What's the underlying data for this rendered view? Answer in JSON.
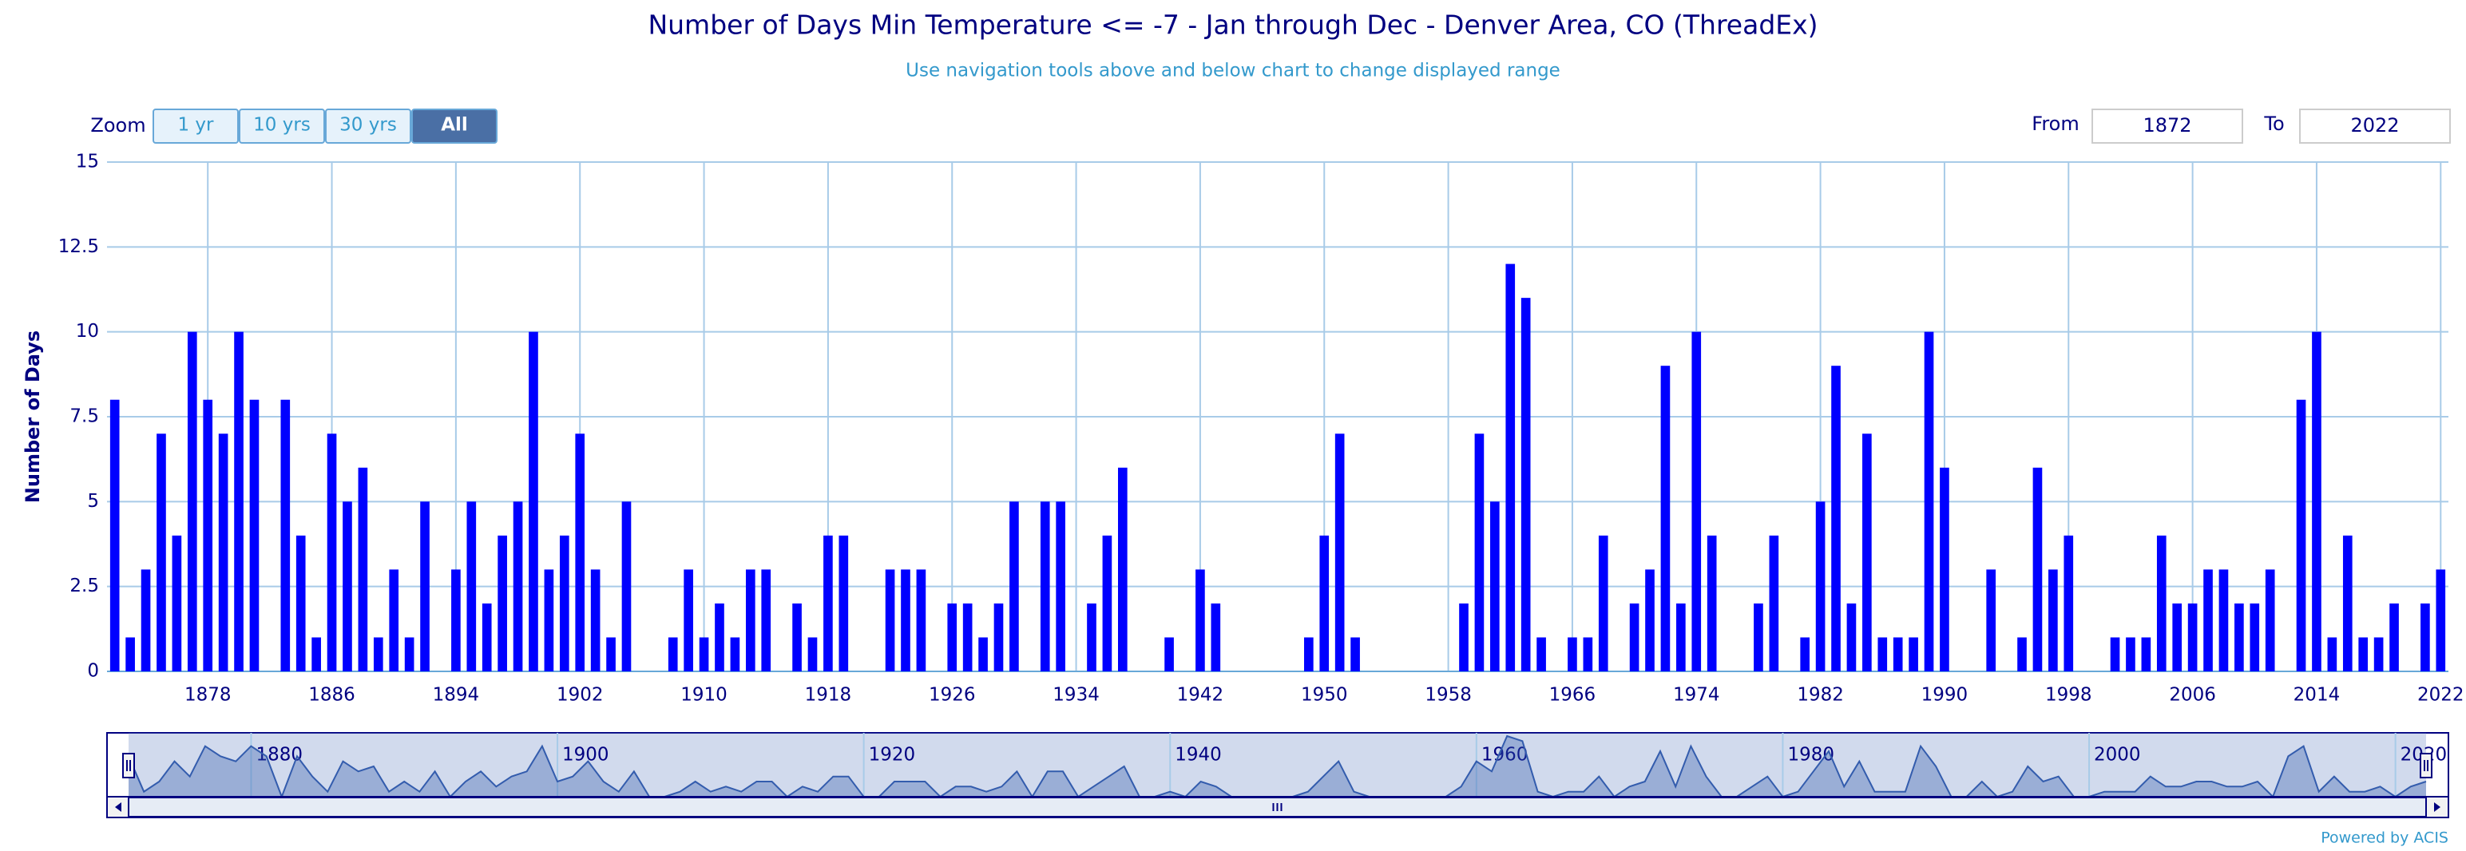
{
  "chart_data": {
    "type": "bar",
    "title": "Number of Days Min Temperature <= -7 - Jan through Dec - Denver Area, CO (ThreadEx)",
    "subtitle": "Use navigation tools above and below chart to change displayed range",
    "y_label": "Number of Days",
    "credit": "Powered by ACIS",
    "zoom": {
      "label": "Zoom",
      "buttons": [
        "1 yr",
        "10 yrs",
        "30 yrs",
        "All"
      ],
      "selected": 3
    },
    "range": {
      "from_label": "From",
      "from": "1872",
      "to_label": "To",
      "to": "2022"
    },
    "color": "#0000ff",
    "x": [
      1872,
      1873,
      1874,
      1875,
      1876,
      1877,
      1878,
      1879,
      1880,
      1881,
      1882,
      1883,
      1884,
      1885,
      1886,
      1887,
      1888,
      1889,
      1890,
      1891,
      1892,
      1893,
      1894,
      1895,
      1896,
      1897,
      1898,
      1899,
      1900,
      1901,
      1902,
      1903,
      1904,
      1905,
      1906,
      1907,
      1908,
      1909,
      1910,
      1911,
      1912,
      1913,
      1914,
      1915,
      1916,
      1917,
      1918,
      1919,
      1920,
      1921,
      1922,
      1923,
      1924,
      1925,
      1926,
      1927,
      1928,
      1929,
      1930,
      1931,
      1932,
      1933,
      1934,
      1935,
      1936,
      1937,
      1938,
      1939,
      1940,
      1941,
      1942,
      1943,
      1944,
      1945,
      1946,
      1947,
      1948,
      1949,
      1950,
      1951,
      1952,
      1953,
      1954,
      1955,
      1956,
      1957,
      1958,
      1959,
      1960,
      1961,
      1962,
      1963,
      1964,
      1965,
      1966,
      1967,
      1968,
      1969,
      1970,
      1971,
      1972,
      1973,
      1974,
      1975,
      1976,
      1977,
      1978,
      1979,
      1980,
      1981,
      1982,
      1983,
      1984,
      1985,
      1986,
      1987,
      1988,
      1989,
      1990,
      1991,
      1992,
      1993,
      1994,
      1995,
      1996,
      1997,
      1998,
      1999,
      2000,
      2001,
      2002,
      2003,
      2004,
      2005,
      2006,
      2007,
      2008,
      2009,
      2010,
      2011,
      2012,
      2013,
      2014,
      2015,
      2016,
      2017,
      2018,
      2019,
      2020,
      2021,
      2022
    ],
    "values": [
      8,
      1,
      3,
      7,
      4,
      10,
      8,
      7,
      10,
      8,
      0,
      8,
      4,
      1,
      7,
      5,
      6,
      1,
      3,
      1,
      5,
      0,
      3,
      5,
      2,
      4,
      5,
      10,
      3,
      4,
      7,
      3,
      1,
      5,
      0,
      0,
      1,
      3,
      1,
      2,
      1,
      3,
      3,
      0,
      2,
      1,
      4,
      4,
      0,
      0,
      3,
      3,
      3,
      0,
      2,
      2,
      1,
      2,
      5,
      0,
      5,
      5,
      0,
      2,
      4,
      6,
      0,
      0,
      1,
      0,
      3,
      2,
      0,
      0,
      0,
      0,
      0,
      1,
      4,
      7,
      1,
      0,
      0,
      0,
      0,
      0,
      0,
      2,
      7,
      5,
      12,
      11,
      1,
      0,
      1,
      1,
      4,
      0,
      2,
      3,
      9,
      2,
      10,
      4,
      0,
      0,
      2,
      4,
      0,
      1,
      5,
      9,
      2,
      7,
      1,
      1,
      1,
      10,
      6,
      0,
      0,
      3,
      0,
      1,
      6,
      3,
      4,
      0,
      0,
      1,
      1,
      1,
      4,
      2,
      2,
      3,
      3,
      2,
      2,
      3,
      0,
      8,
      10,
      1,
      4,
      1,
      1,
      2,
      0,
      2,
      3
    ],
    "xlim": [
      1871.5,
      2022.5
    ],
    "xticks": [
      1878,
      1886,
      1894,
      1902,
      1910,
      1918,
      1926,
      1934,
      1942,
      1950,
      1958,
      1966,
      1974,
      1982,
      1990,
      1998,
      2006,
      2014,
      2022
    ],
    "ylim": [
      0,
      15
    ],
    "yticks": [
      0,
      2.5,
      5,
      7.5,
      10,
      12.5,
      15
    ],
    "grid": true,
    "navigator": {
      "xticks": [
        1880,
        1900,
        1920,
        1940,
        1960,
        1980,
        2000,
        2020
      ]
    }
  }
}
